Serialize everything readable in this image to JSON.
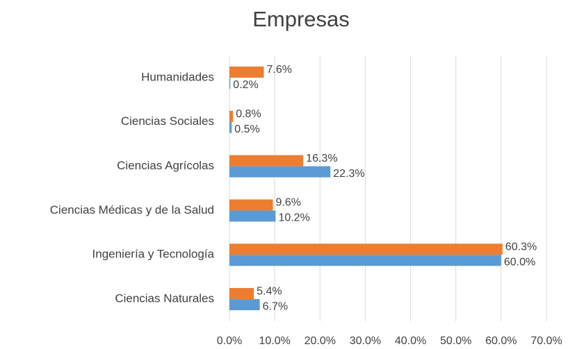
{
  "chart_data": {
    "type": "bar",
    "orientation": "horizontal",
    "title": "Empresas",
    "categories": [
      "Humanidades",
      "Ciencias Sociales",
      "Ciencias Agrícolas",
      "Ciencias Médicas y de la Salud",
      "Ingeniería y Tecnología",
      "Ciencias Naturales"
    ],
    "series": [
      {
        "color": "#ed7d31",
        "values": [
          7.6,
          0.8,
          16.3,
          9.6,
          60.3,
          5.4
        ],
        "value_labels": [
          "7.6%",
          "0.8%",
          "16.3%",
          "9.6%",
          "60.3%",
          "5.4%"
        ]
      },
      {
        "color": "#5b9bd5",
        "values": [
          0.2,
          0.5,
          22.3,
          10.2,
          60.0,
          6.7
        ],
        "value_labels": [
          "0.2%",
          "0.5%",
          "22.3%",
          "10.2%",
          "60.0%",
          "6.7%"
        ]
      }
    ],
    "xlim": [
      0,
      70
    ],
    "xticks": [
      {
        "value": 0,
        "label": "0.0%"
      },
      {
        "value": 10,
        "label": "10.0%"
      },
      {
        "value": 20,
        "label": "20.0%"
      },
      {
        "value": 30,
        "label": "30.0%"
      },
      {
        "value": 40,
        "label": "40.0%"
      },
      {
        "value": 50,
        "label": "50.0%"
      },
      {
        "value": 60,
        "label": "60.0%"
      },
      {
        "value": 70,
        "label": "70.0%"
      }
    ],
    "grid": true
  }
}
